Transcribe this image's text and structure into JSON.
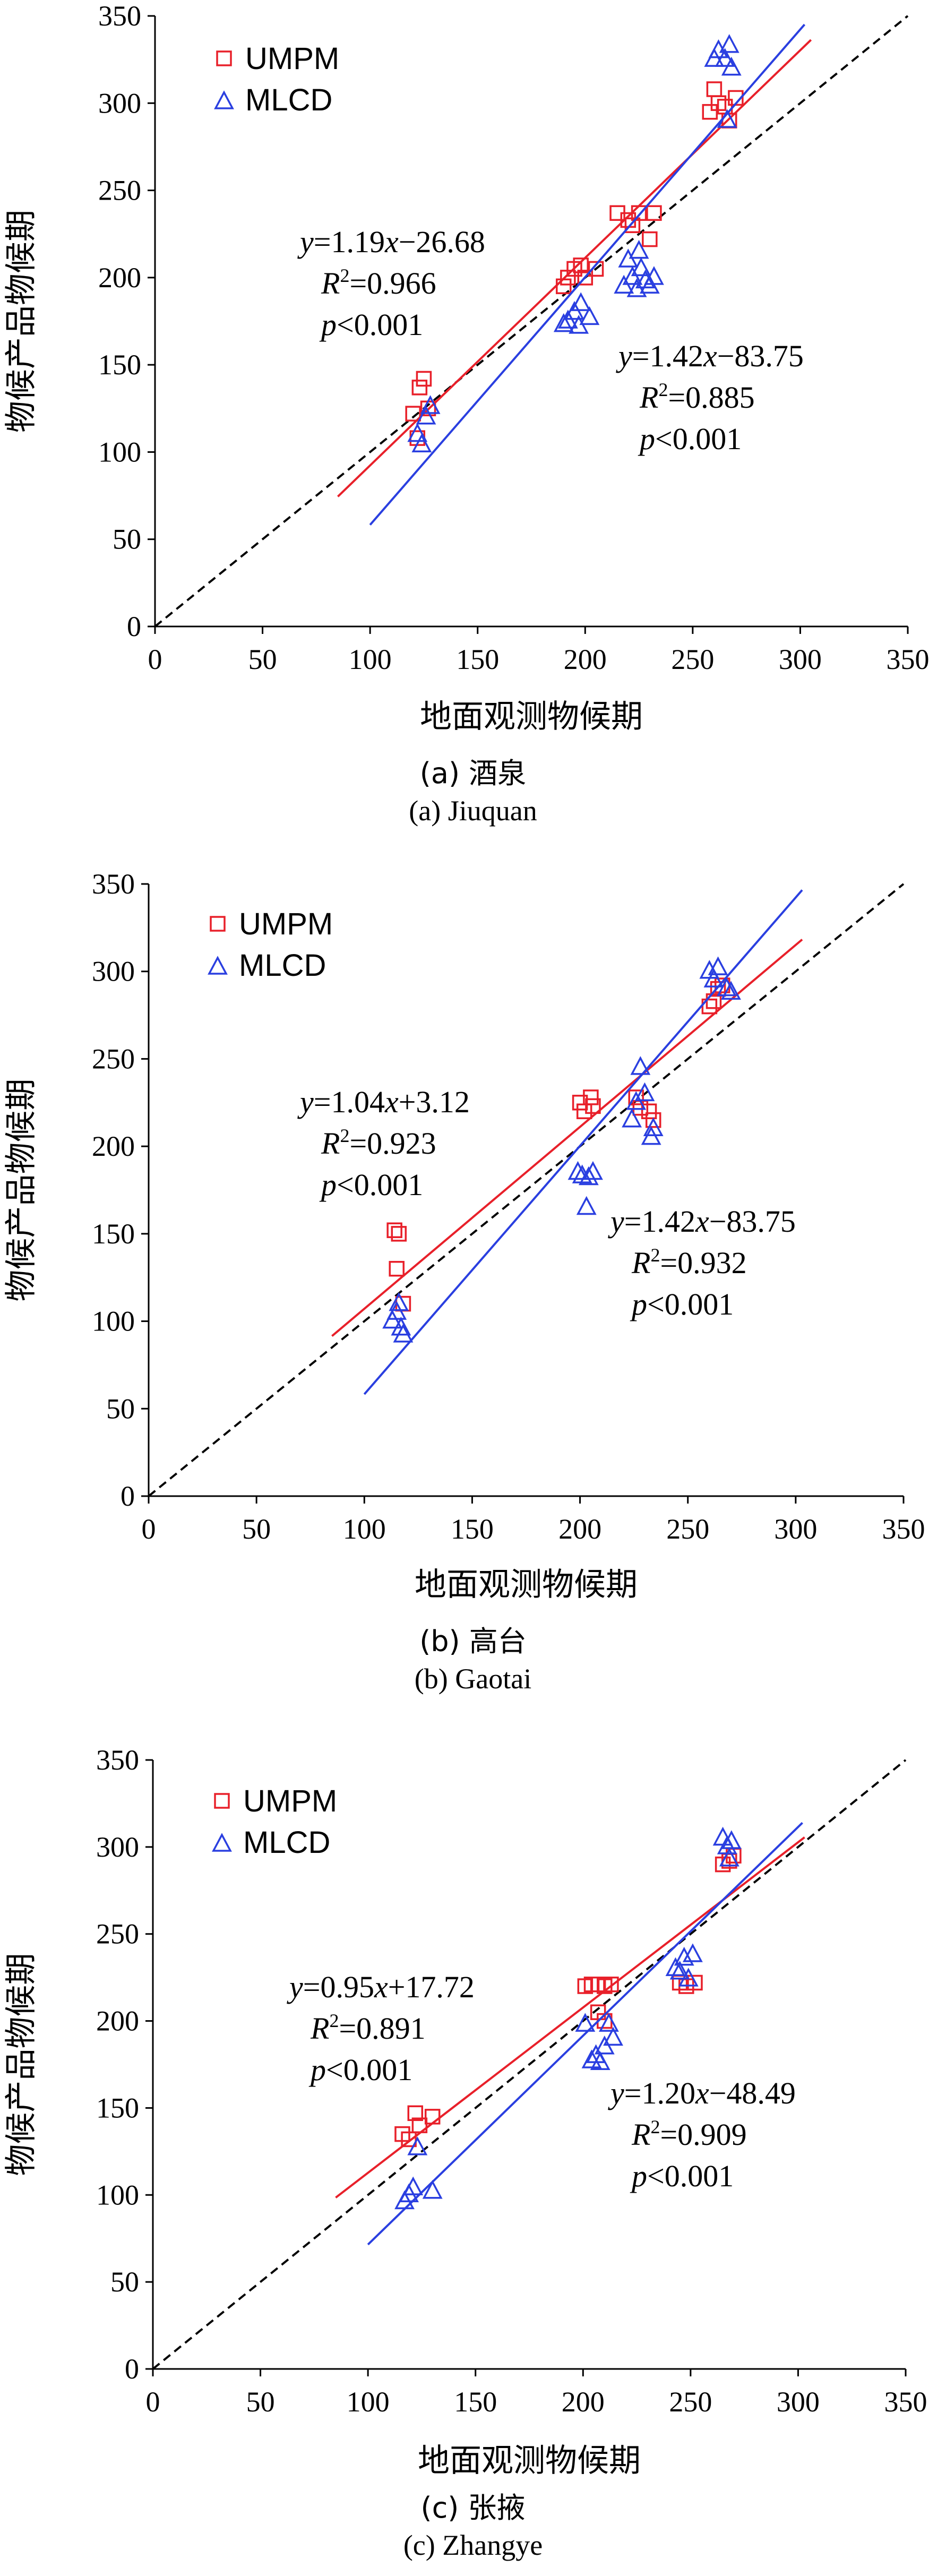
{
  "chart_data": [
    {
      "type": "scatter",
      "panel": "a",
      "caption_cn": "(a) 酒泉",
      "caption_en": "(a) Jiuquan",
      "xlabel": "地面观测物候期",
      "ylabel": "物候产品物候期",
      "xlim": [
        0,
        350
      ],
      "ylim": [
        0,
        350
      ],
      "ticks": [
        0,
        50,
        100,
        150,
        200,
        250,
        300,
        350
      ],
      "legend": [
        "UMPM",
        "MLCD"
      ],
      "reference_line": "1:1",
      "series": [
        {
          "name": "UMPM",
          "marker": "square",
          "color": "#e8202a",
          "points": [
            [
              120,
              122
            ],
            [
              123,
              137
            ],
            [
              125,
              142
            ],
            [
              127,
              125
            ],
            [
              122,
              108
            ],
            [
              190,
              195
            ],
            [
              192,
              200
            ],
            [
              195,
              205
            ],
            [
              198,
              207
            ],
            [
              200,
              200
            ],
            [
              205,
              205
            ],
            [
              215,
              237
            ],
            [
              220,
              233
            ],
            [
              222,
              230
            ],
            [
              225,
              237
            ],
            [
              230,
              222
            ],
            [
              232,
              237
            ],
            [
              258,
              295
            ],
            [
              260,
              308
            ],
            [
              262,
              300
            ],
            [
              265,
              298
            ],
            [
              267,
              290
            ],
            [
              270,
              303
            ]
          ],
          "fit": {
            "slope": 1.19,
            "intercept": -26.68,
            "x_range": [
              85,
              305
            ]
          },
          "equation": {
            "line1_pre": "y",
            "line1_mid": "=1.19",
            "line1_var": "x",
            "line1_post": "−26.68",
            "r2_label": "R",
            "r2_value": "=0.966",
            "p_label": "p",
            "p_value": "<0.001"
          }
        },
        {
          "name": "MLCD",
          "marker": "triangle",
          "color": "#2a3fe0",
          "points": [
            [
              122,
              110
            ],
            [
              124,
              104
            ],
            [
              126,
              120
            ],
            [
              128,
              126
            ],
            [
              190,
              173
            ],
            [
              192,
              175
            ],
            [
              195,
              180
            ],
            [
              197,
              172
            ],
            [
              198,
              185
            ],
            [
              202,
              177
            ],
            [
              218,
              195
            ],
            [
              220,
              210
            ],
            [
              222,
              200
            ],
            [
              224,
              193
            ],
            [
              226,
              205
            ],
            [
              228,
              198
            ],
            [
              230,
              195
            ],
            [
              232,
              200
            ],
            [
              225,
              215
            ],
            [
              260,
              325
            ],
            [
              262,
              330
            ],
            [
              265,
              325
            ],
            [
              267,
              333
            ],
            [
              268,
              320
            ],
            [
              266,
              290
            ]
          ],
          "fit": {
            "slope": 1.42,
            "intercept": -83.75,
            "x_range": [
              100,
              302
            ]
          },
          "equation": {
            "line1_pre": "y",
            "line1_mid": "=1.42",
            "line1_var": "x",
            "line1_post": "−83.75",
            "r2_label": "R",
            "r2_value": "=0.885",
            "p_label": "p",
            "p_value": "<0.001"
          }
        }
      ]
    },
    {
      "type": "scatter",
      "panel": "b",
      "caption_cn": "(b) 高台",
      "caption_en": "(b) Gaotai",
      "xlabel": "地面观测物候期",
      "ylabel": "物候产品物候期",
      "xlim": [
        0,
        350
      ],
      "ylim": [
        0,
        350
      ],
      "ticks": [
        0,
        50,
        100,
        150,
        200,
        250,
        300,
        350
      ],
      "legend": [
        "UMPM",
        "MLCD"
      ],
      "reference_line": "1:1",
      "series": [
        {
          "name": "UMPM",
          "marker": "square",
          "color": "#e8202a",
          "points": [
            [
              114,
              152
            ],
            [
              116,
              150
            ],
            [
              115,
              130
            ],
            [
              118,
              110
            ],
            [
              200,
              225
            ],
            [
              202,
              220
            ],
            [
              205,
              228
            ],
            [
              206,
              223
            ],
            [
              226,
              228
            ],
            [
              228,
              222
            ],
            [
              232,
              220
            ],
            [
              234,
              215
            ],
            [
              260,
              280
            ],
            [
              262,
              283
            ],
            [
              264,
              290
            ],
            [
              266,
              292
            ]
          ],
          "fit": {
            "slope": 1.04,
            "intercept": 3.12,
            "x_range": [
              85,
              303
            ]
          },
          "equation": {
            "line1_pre": "y",
            "line1_mid": "=1.04",
            "line1_var": "x",
            "line1_post": "+3.12",
            "r2_label": "R",
            "r2_value": "=0.923",
            "p_label": "p",
            "p_value": "<0.001"
          }
        },
        {
          "name": "MLCD",
          "marker": "triangle",
          "color": "#2a3fe0",
          "points": [
            [
              113,
              100
            ],
            [
              115,
              105
            ],
            [
              116,
              110
            ],
            [
              117,
              96
            ],
            [
              118,
              92
            ],
            [
              199,
              185
            ],
            [
              201,
              183
            ],
            [
              204,
              182
            ],
            [
              206,
              185
            ],
            [
              203,
              165
            ],
            [
              224,
              215
            ],
            [
              226,
              225
            ],
            [
              228,
              245
            ],
            [
              230,
              230
            ],
            [
              233,
              205
            ],
            [
              234,
              210
            ],
            [
              260,
              300
            ],
            [
              262,
              295
            ],
            [
              264,
              302
            ],
            [
              268,
              290
            ],
            [
              270,
              288
            ]
          ],
          "fit": {
            "slope": 1.42,
            "intercept": -83.75,
            "x_range": [
              100,
              303
            ]
          },
          "equation": {
            "line1_pre": "y",
            "line1_mid": "=1.42",
            "line1_var": "x",
            "line1_post": "−83.75",
            "r2_label": "R",
            "r2_value": "=0.932",
            "p_label": "p",
            "p_value": "<0.001"
          }
        }
      ]
    },
    {
      "type": "scatter",
      "panel": "c",
      "caption_cn": "(c) 张掖",
      "caption_en": "(c) Zhangye",
      "xlabel": "地面观测物候期",
      "ylabel": "物候产品物候期",
      "xlim": [
        0,
        350
      ],
      "ylim": [
        0,
        350
      ],
      "ticks": [
        0,
        50,
        100,
        150,
        200,
        250,
        300,
        350
      ],
      "legend": [
        "UMPM",
        "MLCD"
      ],
      "reference_line": "1:1",
      "series": [
        {
          "name": "UMPM",
          "marker": "square",
          "color": "#e8202a",
          "points": [
            [
              116,
              135
            ],
            [
              119,
              132
            ],
            [
              122,
              147
            ],
            [
              124,
              140
            ],
            [
              130,
              145
            ],
            [
              201,
              220
            ],
            [
              204,
              221
            ],
            [
              207,
              221
            ],
            [
              210,
              220
            ],
            [
              213,
              221
            ],
            [
              207,
              205
            ],
            [
              210,
              200
            ],
            [
              245,
              222
            ],
            [
              248,
              220
            ],
            [
              252,
              222
            ],
            [
              265,
              290
            ],
            [
              268,
              292
            ],
            [
              270,
              295
            ]
          ],
          "fit": {
            "slope": 0.95,
            "intercept": 17.72,
            "x_range": [
              85,
              303
            ]
          },
          "equation": {
            "line1_pre": "y",
            "line1_mid": "=0.95",
            "line1_var": "x",
            "line1_post": "+17.72",
            "r2_label": "R",
            "r2_value": "=0.891",
            "p_label": "p",
            "p_value": "<0.001"
          }
        },
        {
          "name": "MLCD",
          "marker": "triangle",
          "color": "#2a3fe0",
          "points": [
            [
              117,
              96
            ],
            [
              119,
              100
            ],
            [
              121,
              104
            ],
            [
              123,
              127
            ],
            [
              130,
              102
            ],
            [
              201,
              198
            ],
            [
              204,
              177
            ],
            [
              206,
              180
            ],
            [
              208,
              176
            ],
            [
              210,
              185
            ],
            [
              212,
              198
            ],
            [
              214,
              190
            ],
            [
              243,
              230
            ],
            [
              245,
              228
            ],
            [
              247,
              236
            ],
            [
              249,
              224
            ],
            [
              251,
              238
            ],
            [
              265,
              305
            ],
            [
              267,
              300
            ],
            [
              268,
              293
            ],
            [
              269,
              303
            ]
          ],
          "fit": {
            "slope": 1.2,
            "intercept": -48.49,
            "x_range": [
              100,
              302
            ]
          },
          "equation": {
            "line1_pre": "y",
            "line1_mid": "=1.20",
            "line1_var": "x",
            "line1_post": "−48.49",
            "r2_label": "R",
            "r2_value": "=0.909",
            "p_label": "p",
            "p_value": "<0.001"
          }
        }
      ]
    }
  ]
}
